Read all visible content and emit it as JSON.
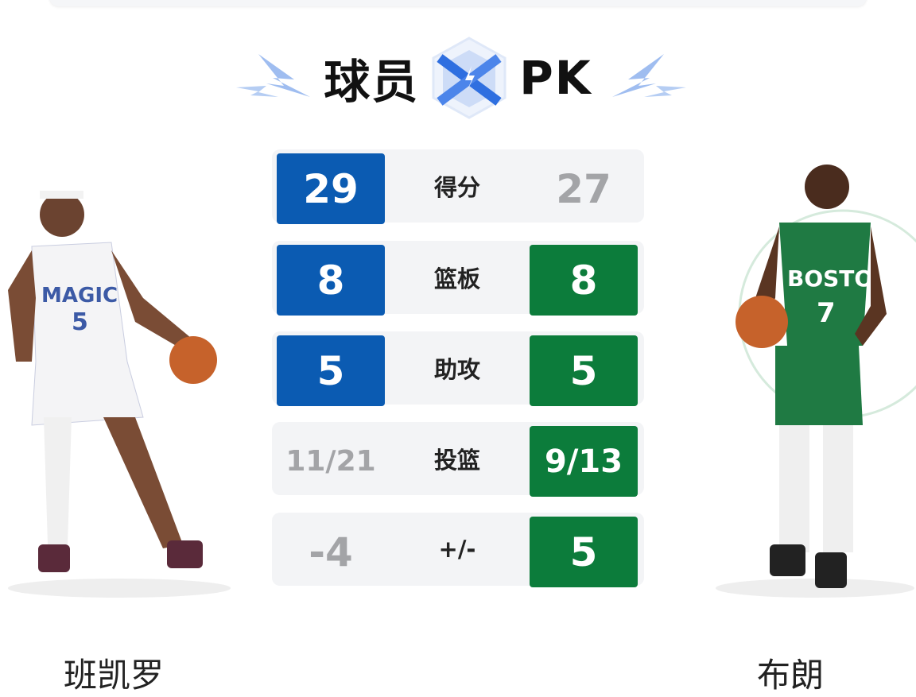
{
  "header": {
    "title_left": "球员",
    "title_right": "PK",
    "vs_icon": "crossed-swords-cube-icon",
    "accent": "#4a7fe0"
  },
  "colors": {
    "left_team": "#0b5bb2",
    "right_team": "#0c7c3b",
    "neutral": "#a3a4a7"
  },
  "players": {
    "left": {
      "name": "班凯罗",
      "team": "MAGIC",
      "number": "5"
    },
    "right": {
      "name": "布朗",
      "team": "BOSTON",
      "number": "7"
    }
  },
  "stats": [
    {
      "label": "得分",
      "left": "29",
      "right": "27",
      "winner": "left"
    },
    {
      "label": "篮板",
      "left": "8",
      "right": "8",
      "winner": "both"
    },
    {
      "label": "助攻",
      "left": "5",
      "right": "5",
      "winner": "both"
    },
    {
      "label": "投篮",
      "left": "11/21",
      "right": "9/13",
      "winner": "right"
    },
    {
      "label": "+/-",
      "left": "-4",
      "right": "5",
      "winner": "right"
    }
  ]
}
